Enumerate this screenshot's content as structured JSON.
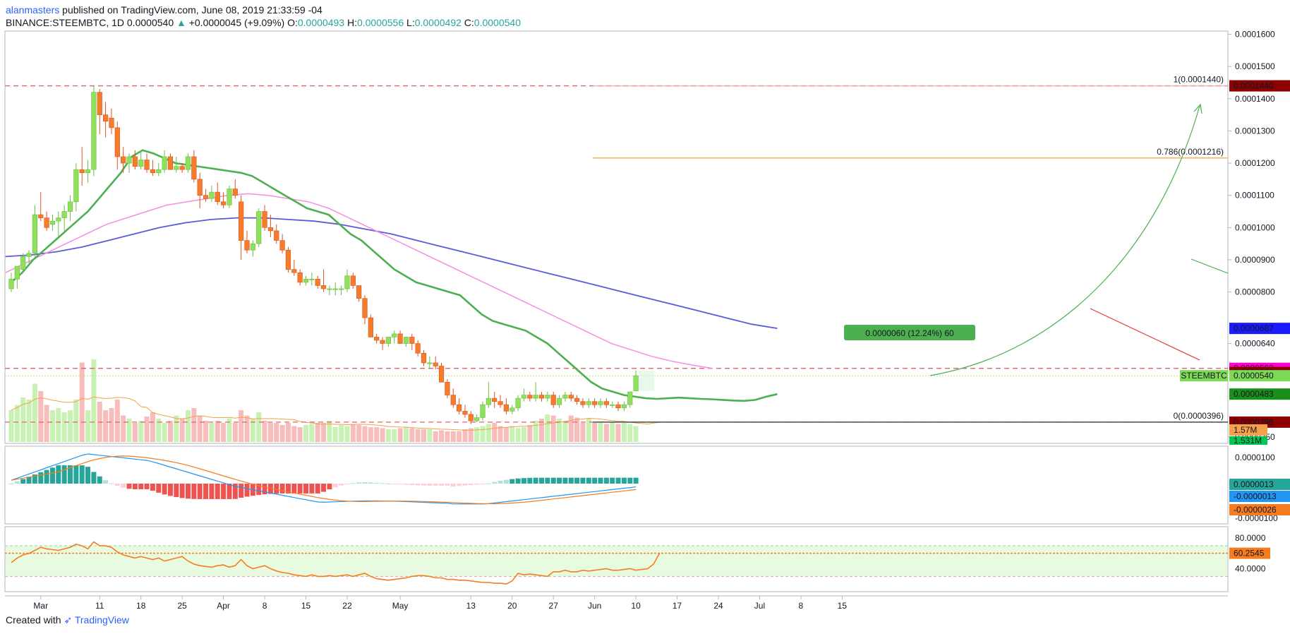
{
  "header": {
    "user": "alanmasters",
    "published_text": "published on TradingView.com, June 08, 2019 21:33:59 -04",
    "symbol": "BINANCE:STEEMBTC, 1D",
    "last": "0.0000540",
    "change_arrow": "▲",
    "change": "+0.0000045 (+9.09%)",
    "o_label": "O:",
    "o": "0.0000493",
    "h_label": "H:",
    "h": "0.0000556",
    "l_label": "L:",
    "l": "0.0000492",
    "c_label": "C:",
    "c": "0.0000540"
  },
  "footer": {
    "created_with": "Created with",
    "brand": "TradingView"
  },
  "colors": {
    "up": "#8fe05a",
    "down": "#f47c2a",
    "ema_short": "#4caf50",
    "ma_mid": "#f48fe0",
    "ma_long": "#5b5bdc",
    "resistance": "#e06666",
    "fib786": "#f5b35a",
    "projection": "#4caf50",
    "grid": "#f0f3fa",
    "macd": "#2196f3",
    "signal": "#f57c1f",
    "rsi": "#f57c1f",
    "rsi_band": "#e8fbe0"
  },
  "chart_data": {
    "type": "candlestick",
    "symbol": "STEEMBTC",
    "price_axis": {
      "ticks": [
        "0.0001600",
        "0.0001500",
        "0.0001400",
        "0.0001300",
        "0.0001200",
        "0.0001100",
        "0.0001000",
        "0.0000900",
        "0.0000800",
        "0.0000640",
        "0.0000350"
      ],
      "min": 3.3e-05,
      "max": 0.000161
    },
    "date_axis": {
      "ticks": [
        "Mar",
        "11",
        "18",
        "25",
        "Apr",
        "8",
        "15",
        "22",
        "May",
        "13",
        "20",
        "27",
        "Jun",
        "10",
        "17",
        "24",
        "Jul",
        "8",
        "15"
      ]
    },
    "price_labels": [
      {
        "text": "0.0001440",
        "value": 0.000144,
        "color": "#8b0000"
      },
      {
        "text": "0.0000687",
        "value": 6.87e-05,
        "color": "#1a1aff"
      },
      {
        "text": "0.0000563",
        "value": 5.63e-05,
        "color": "#ff00cc"
      },
      {
        "text": "0.0000550",
        "value": 5.5e-05,
        "color": "#8b0000"
      },
      {
        "text": "0.0000540",
        "value": 5.4e-05,
        "color": "#7ed957"
      },
      {
        "text": "0.0000483",
        "value": 4.83e-05,
        "color": "#1b8f1b"
      },
      {
        "text": "0.0000396",
        "value": 3.96e-05,
        "color": "#8b0000"
      }
    ],
    "symbol_tag": "STEEMBTC",
    "volume_labels": [
      "1.57M",
      "1.531M"
    ],
    "fib_levels": [
      {
        "label": "1(0.0001440)",
        "value": 0.000144
      },
      {
        "label": "0.786(0.0001216)",
        "value": 0.0001216
      },
      {
        "label": "0(0.0000396)",
        "value": 3.96e-05
      }
    ],
    "measure_label": "0.0000060 (12.24%) 60",
    "start_date": "2019-02-24",
    "candles": [
      [
        8.1e-05,
        8.6e-05,
        8e-05,
        8.4e-05
      ],
      [
        8.4e-05,
        8.8e-05,
        8.1e-05,
        8.8e-05
      ],
      [
        8.7e-05,
        9.2e-05,
        8.6e-05,
        9.1e-05
      ],
      [
        9.1e-05,
        9.3e-05,
        8.9e-05,
        9.2e-05
      ],
      [
        9.2e-05,
        0.000107,
        9.1e-05,
        0.000104
      ],
      [
        0.000104,
        0.000111,
        0.000102,
        0.000103
      ],
      [
        0.000103,
        0.000105,
        9.9e-05,
        0.0001
      ],
      [
        0.000101,
        0.000104,
        9.9e-05,
        0.000102
      ],
      [
        0.000102,
        0.000105,
        9.7e-05,
        0.000103
      ],
      [
        0.000103,
        0.000107,
        9.9e-05,
        0.000105
      ],
      [
        0.000105,
        0.00011,
        0.000102,
        0.000108
      ],
      [
        0.000108,
        0.00012,
        0.000105,
        0.000118
      ],
      [
        0.000118,
        0.000125,
        0.000113,
        0.000117
      ],
      [
        0.000117,
        0.000121,
        0.000114,
        0.000118
      ],
      [
        0.000118,
        0.000144,
        0.000116,
        0.000142
      ],
      [
        0.000142,
        0.000143,
        0.000129,
        0.000135
      ],
      [
        0.000135,
        0.000139,
        0.000128,
        0.000133
      ],
      [
        0.000134,
        0.000137,
        0.000129,
        0.000131
      ],
      [
        0.000131,
        0.000133,
        0.000118,
        0.000122
      ],
      [
        0.000122,
        0.000125,
        0.000117,
        0.00012
      ],
      [
        0.00012,
        0.000123,
        0.000117,
        0.000122
      ],
      [
        0.000122,
        0.000124,
        0.000118,
        0.000119
      ],
      [
        0.000119,
        0.000124,
        0.000118,
        0.000121
      ],
      [
        0.000121,
        0.000123,
        0.000117,
        0.000118
      ],
      [
        0.000118,
        0.000121,
        0.000116,
        0.000117
      ],
      [
        0.000117,
        0.00012,
        0.000116,
        0.000118
      ],
      [
        0.000118,
        0.000124,
        0.000117,
        0.000122
      ],
      [
        0.000122,
        0.000123,
        0.000118,
        0.000118
      ],
      [
        0.000118,
        0.000122,
        0.000117,
        0.000119
      ],
      [
        0.000119,
        0.00012,
        0.000117,
        0.000118
      ],
      [
        0.000118,
        0.000123,
        0.000117,
        0.000122
      ],
      [
        0.000122,
        0.000124,
        0.000114,
        0.000115
      ],
      [
        0.000115,
        0.000117,
        0.000106,
        0.00011
      ],
      [
        0.00011,
        0.000112,
        0.000108,
        0.000109
      ],
      [
        0.000109,
        0.000113,
        0.000108,
        0.000111
      ],
      [
        0.000111,
        0.000114,
        0.000107,
        0.000108
      ],
      [
        0.000108,
        0.000111,
        0.000106,
        0.000107
      ],
      [
        0.000107,
        0.000113,
        0.000106,
        0.000112
      ],
      [
        0.000112,
        0.000115,
        0.000109,
        0.00011
      ],
      [
        0.000108,
        0.00011,
        9e-05,
        9.6e-05
      ],
      [
        9.6e-05,
        9.9e-05,
        9.2e-05,
        9.3e-05
      ],
      [
        9.3e-05,
        9.6e-05,
        9.1e-05,
        9.5e-05
      ],
      [
        9.5e-05,
        0.000106,
        9.4e-05,
        0.000105
      ],
      [
        0.000105,
        0.000107,
        9.9e-05,
        0.0001
      ],
      [
        0.0001,
        0.000104,
        9.7e-05,
        9.9e-05
      ],
      [
        9.9e-05,
        0.000101,
        9.5e-05,
        9.6e-05
      ],
      [
        9.6e-05,
        9.8e-05,
        9.2e-05,
        9.3e-05
      ],
      [
        9.3e-05,
        9.4e-05,
        8.6e-05,
        8.7e-05
      ],
      [
        8.7e-05,
        9e-05,
        8.5e-05,
        8.6e-05
      ],
      [
        8.6e-05,
        8.7e-05,
        8.2e-05,
        8.3e-05
      ],
      [
        8.3e-05,
        8.5e-05,
        8.2e-05,
        8.4e-05
      ],
      [
        8.4e-05,
        8.6e-05,
        8.2e-05,
        8.4e-05
      ],
      [
        8.4e-05,
        8.5e-05,
        8.1e-05,
        8.2e-05
      ],
      [
        8.2e-05,
        8.7e-05,
        8e-05,
        8.1e-05
      ],
      [
        8.1e-05,
        8.2e-05,
        7.9e-05,
        8.1e-05
      ],
      [
        8.1e-05,
        8.3e-05,
        7.9e-05,
        8.1e-05
      ],
      [
        8.1e-05,
        8.2e-05,
        7.9e-05,
        8.1e-05
      ],
      [
        8.1e-05,
        8.7e-05,
        8e-05,
        8.5e-05
      ],
      [
        8.5e-05,
        8.6e-05,
        8.1e-05,
        8.2e-05
      ],
      [
        8.2e-05,
        8.2e-05,
        7.7e-05,
        7.8e-05
      ],
      [
        7.8e-05,
        7.9e-05,
        7e-05,
        7.2e-05
      ],
      [
        7.2e-05,
        7.3e-05,
        6.6e-05,
        6.6e-05
      ],
      [
        6.6e-05,
        6.7e-05,
        6.4e-05,
        6.5e-05
      ],
      [
        6.5e-05,
        6.6e-05,
        6.2e-05,
        6.4e-05
      ],
      [
        6.4e-05,
        6.6e-05,
        6.3e-05,
        6.6e-05
      ],
      [
        6.6e-05,
        6.8e-05,
        6.4e-05,
        6.7e-05
      ],
      [
        6.7e-05,
        6.8e-05,
        6.4e-05,
        6.4e-05
      ],
      [
        6.4e-05,
        6.6e-05,
        6.3e-05,
        6.6e-05
      ],
      [
        6.6e-05,
        6.7e-05,
        6.2e-05,
        6.4e-05
      ],
      [
        6.4e-05,
        6.5e-05,
        6e-05,
        6.1e-05
      ],
      [
        6.1e-05,
        6.2e-05,
        5.7e-05,
        5.8e-05
      ],
      [
        5.8e-05,
        6e-05,
        5.6e-05,
        5.8e-05
      ],
      [
        5.8e-05,
        6e-05,
        5.6e-05,
        5.7e-05
      ],
      [
        5.7e-05,
        5.8e-05,
        5.2e-05,
        5.2e-05
      ],
      [
        5.2e-05,
        5.3e-05,
        4.7e-05,
        4.8e-05
      ],
      [
        4.8e-05,
        5e-05,
        4.4e-05,
        4.5e-05
      ],
      [
        4.5e-05,
        4.7e-05,
        4.2e-05,
        4.3e-05
      ],
      [
        4.3e-05,
        4.5e-05,
        4.1e-05,
        4.2e-05
      ],
      [
        4.2e-05,
        4.3e-05,
        3.9e-05,
        4e-05
      ],
      [
        4e-05,
        4.2e-05,
        3.96e-05,
        4.1e-05
      ],
      [
        4.1e-05,
        4.6e-05,
        4e-05,
        4.5e-05
      ],
      [
        4.5e-05,
        5.2e-05,
        4.4e-05,
        4.7e-05
      ],
      [
        4.7e-05,
        4.9e-05,
        4.4e-05,
        4.6e-05
      ],
      [
        4.6e-05,
        4.8e-05,
        4.4e-05,
        4.5e-05
      ],
      [
        4.5e-05,
        4.7e-05,
        4.2e-05,
        4.3e-05
      ],
      [
        4.3e-05,
        4.5e-05,
        4.2e-05,
        4.4e-05
      ],
      [
        4.4e-05,
        4.8e-05,
        4.3e-05,
        4.7e-05
      ],
      [
        4.7e-05,
        5e-05,
        4.6e-05,
        4.8e-05
      ],
      [
        4.8e-05,
        4.9e-05,
        4.6e-05,
        4.7e-05
      ],
      [
        4.7e-05,
        5.2e-05,
        4.6e-05,
        4.8e-05
      ],
      [
        4.8e-05,
        4.9e-05,
        4.6e-05,
        4.7e-05
      ],
      [
        4.7e-05,
        4.9e-05,
        4.6e-05,
        4.8e-05
      ],
      [
        4.8e-05,
        4.9e-05,
        4.4e-05,
        4.5e-05
      ],
      [
        4.5e-05,
        4.8e-05,
        4.4e-05,
        4.7e-05
      ],
      [
        4.7e-05,
        4.9e-05,
        4.6e-05,
        4.8e-05
      ],
      [
        4.8e-05,
        4.9e-05,
        4.6e-05,
        4.7e-05
      ],
      [
        4.7e-05,
        4.8e-05,
        4.5e-05,
        4.6e-05
      ],
      [
        4.6e-05,
        4.7e-05,
        4.4e-05,
        4.5e-05
      ],
      [
        4.5e-05,
        4.7e-05,
        4.4e-05,
        4.6e-05
      ],
      [
        4.6e-05,
        4.7e-05,
        4.4e-05,
        4.5e-05
      ],
      [
        4.5e-05,
        4.7e-05,
        4.4e-05,
        4.6e-05
      ],
      [
        4.6e-05,
        4.7e-05,
        4.4e-05,
        4.5e-05
      ],
      [
        4.5e-05,
        4.6e-05,
        4.4e-05,
        4.5e-05
      ],
      [
        4.5e-05,
        4.6e-05,
        4.3e-05,
        4.4e-05
      ],
      [
        4.4e-05,
        4.6e-05,
        4.3e-05,
        4.5e-05
      ],
      [
        4.5e-05,
        4.9e-05,
        4.4e-05,
        4.9e-05
      ],
      [
        4.93e-05,
        5.56e-05,
        4.92e-05,
        5.4e-05
      ]
    ],
    "ema_short": [
      8.3e-05,
      8.6e-05,
      9e-05,
      9.3e-05,
      9.6e-05,
      9.9e-05,
      0.000102,
      0.000105,
      0.000109,
      0.000113,
      0.000117,
      0.000122,
      0.000124,
      0.000123,
      0.0001215,
      0.00012,
      0.0001195,
      0.000119,
      0.0001185,
      0.000118,
      0.0001175,
      0.000117,
      0.000116,
      0.000114,
      0.000112,
      0.00011,
      0.000108,
      0.000106,
      0.000105,
      0.000104,
      0.000101,
      9.8e-05,
      9.6e-05,
      9.3e-05,
      9e-05,
      8.7e-05,
      8.5e-05,
      8.3e-05,
      8.2e-05,
      8.1e-05,
      8e-05,
      7.9e-05,
      7.6e-05,
      7.3e-05,
      7.1e-05,
      7e-05,
      6.9e-05,
      6.8e-05,
      6.6e-05,
      6.4e-05,
      6.1e-05,
      5.8e-05,
      5.5e-05,
      5.2e-05,
      5e-05,
      4.9e-05,
      4.8e-05,
      4.75e-05,
      4.7e-05,
      4.68e-05,
      4.7e-05,
      4.72e-05,
      4.7e-05,
      4.68e-05,
      4.67e-05,
      4.65e-05,
      4.63e-05,
      4.62e-05,
      4.65e-05,
      4.75e-05,
      4.83e-05
    ],
    "ema_short_start": 0,
    "ma_mid": [
      8.6e-05,
      8.9e-05,
      9.2e-05,
      9.5e-05,
      9.8e-05,
      0.000101,
      0.000103,
      0.000105,
      0.000107,
      0.000108,
      0.000109,
      0.00011,
      0.0001105,
      0.00011,
      0.000109,
      0.000108,
      0.000106,
      0.000103,
      0.0001,
      9.7e-05,
      9.4e-05,
      9.1e-05,
      8.8e-05,
      8.5e-05,
      8.2e-05,
      7.9e-05,
      7.6e-05,
      7.3e-05,
      7e-05,
      6.7e-05,
      6.4e-05,
      6.2e-05,
      6e-05,
      5.85e-05,
      5.73e-05,
      5.63e-05
    ],
    "ma_long": [
      9.1e-05,
      9.15e-05,
      9.25e-05,
      9.4e-05,
      9.6e-05,
      9.8e-05,
      0.0001,
      0.0001015,
      0.0001025,
      0.000103,
      0.000103,
      0.0001025,
      0.000102,
      0.000101,
      9.95e-05,
      9.8e-05,
      9.6e-05,
      9.4e-05,
      9.2e-05,
      9e-05,
      8.8e-05,
      8.6e-05,
      8.4e-05,
      8.2e-05,
      8e-05,
      7.8e-05,
      7.6e-05,
      7.4e-05,
      7.2e-05,
      7e-05,
      6.87e-05
    ],
    "volume": [
      0.3,
      0.35,
      0.42,
      0.4,
      0.55,
      0.48,
      0.35,
      0.3,
      0.32,
      0.28,
      0.3,
      0.4,
      0.75,
      0.3,
      0.78,
      0.38,
      0.3,
      0.32,
      0.4,
      0.25,
      0.22,
      0.18,
      0.2,
      0.24,
      0.28,
      0.22,
      0.18,
      0.2,
      0.25,
      0.22,
      0.3,
      0.32,
      0.25,
      0.2,
      0.18,
      0.2,
      0.18,
      0.22,
      0.18,
      0.3,
      0.25,
      0.22,
      0.28,
      0.2,
      0.18,
      0.18,
      0.16,
      0.18,
      0.15,
      0.14,
      0.16,
      0.17,
      0.18,
      0.18,
      0.2,
      0.14,
      0.16,
      0.15,
      0.17,
      0.16,
      0.15,
      0.14,
      0.14,
      0.13,
      0.12,
      0.12,
      0.13,
      0.14,
      0.13,
      0.12,
      0.12,
      0.12,
      0.1,
      0.11,
      0.1,
      0.1,
      0.1,
      0.12,
      0.13,
      0.14,
      0.15,
      0.17,
      0.18,
      0.15,
      0.14,
      0.15,
      0.13,
      0.14,
      0.16,
      0.2,
      0.22,
      0.26,
      0.25,
      0.22,
      0.2,
      0.25,
      0.23,
      0.18,
      0.22,
      0.18,
      0.18,
      0.17,
      0.19,
      0.17,
      0.18,
      0.17,
      0.15,
      0.14,
      0.16,
      0.28,
      0.25
    ],
    "volume_ma": 1.57,
    "macd_axis": {
      "ticks": [
        "0.0000100",
        "-0.0000100"
      ],
      "min": -1.15e-05,
      "max": 1.15e-05
    },
    "macd_labels": [
      {
        "text": "0.0000013",
        "color": "#26a69a"
      },
      {
        "text": "-0.0000013",
        "color": "#2196f3"
      },
      {
        "text": "-0.0000026",
        "color": "#f57c1f"
      }
    ],
    "rsi_axis": {
      "ticks": [
        "80.0000",
        "40.0000"
      ],
      "min": 10,
      "max": 95,
      "band": [
        30,
        70
      ]
    },
    "rsi_label": "60.2545",
    "rsi": [
      48,
      54,
      58,
      60,
      64,
      68,
      66,
      65,
      64,
      66,
      68,
      72,
      70,
      66,
      75,
      70,
      70,
      68,
      62,
      58,
      56,
      54,
      56,
      54,
      52,
      54,
      50,
      52,
      54,
      56,
      50,
      46,
      44,
      43,
      42,
      44,
      45,
      42,
      44,
      52,
      44,
      40,
      42,
      44,
      40,
      37,
      35,
      34,
      32,
      31,
      30,
      32,
      30,
      30,
      31,
      30,
      31,
      32,
      30,
      32,
      34,
      30,
      27,
      26,
      25,
      26,
      27,
      28,
      30,
      31,
      31,
      30,
      28,
      28,
      26,
      26,
      25,
      25,
      24,
      23,
      22,
      22,
      21,
      21,
      20,
      24,
      34,
      32,
      33,
      32,
      31,
      30,
      36,
      36,
      38,
      36,
      36,
      38,
      37,
      38,
      39,
      40,
      38,
      38,
      39,
      40,
      38,
      39,
      40,
      46,
      60
    ]
  }
}
